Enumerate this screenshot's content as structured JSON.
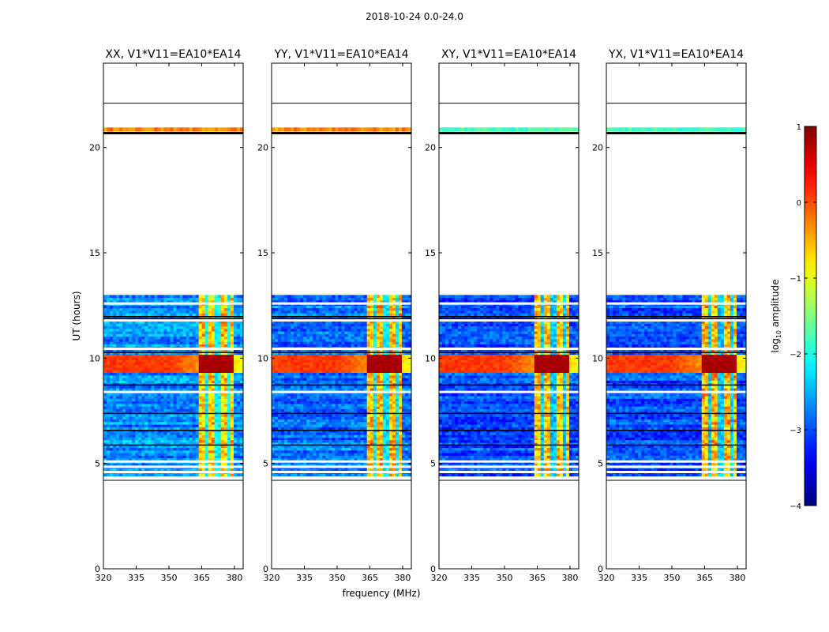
{
  "suptitle": "2018-10-24 0.0-24.0",
  "chart_data": {
    "type": "heatmap",
    "x_label": "frequency (MHz)",
    "y_label": "UT (hours)",
    "x_ticks": [
      320,
      335,
      350,
      365,
      380
    ],
    "x_tick_labels": [
      "320",
      "335",
      "350",
      "365",
      "380"
    ],
    "y_ticks": [
      0,
      5,
      10,
      15,
      20
    ],
    "y_tick_labels": [
      "0",
      "5",
      "10",
      "15",
      "20"
    ],
    "xlim": [
      320,
      384
    ],
    "ylim": [
      0,
      24
    ],
    "colorbar": {
      "label": "log10 amplitude",
      "label_prefix": "log",
      "label_sub": "10",
      "label_suffix": " amplitude",
      "range": [
        -4,
        1
      ],
      "ticks": [
        1,
        0,
        -1,
        -2,
        -3,
        -4
      ],
      "tick_labels": [
        "1",
        "0",
        "−1",
        "−2",
        "−3",
        "−4"
      ],
      "colormap": "jet"
    },
    "features": {
      "data_hours": [
        4.4,
        13.0
      ],
      "bright_band_mhz": [
        364,
        380
      ],
      "bright_band_gaps_mhz": [
        367.5,
        372.5,
        377.5
      ],
      "strong_rfi_hours": [
        9.3,
        10.2
      ],
      "extra_rows_hours": [
        20.75,
        20.95
      ],
      "horizontal_lines_hours": [
        4.2,
        22.1,
        20.7
      ]
    },
    "panels": [
      {
        "name": "XX",
        "title": "XX, V1*V11=EA10*EA14",
        "band_start_mhz": 361,
        "hot_band_start_mhz": 364,
        "background_level": -2.7,
        "band_level": -0.7,
        "top_row_level": -0.3
      },
      {
        "name": "YY",
        "title": "YY, V1*V11=EA10*EA14",
        "band_start_mhz": 361,
        "hot_band_start_mhz": 364,
        "background_level": -2.8,
        "band_level": -0.5,
        "top_row_level": -0.3
      },
      {
        "name": "XY",
        "title": "XY, V1*V11=EA10*EA14",
        "band_start_mhz": 361,
        "hot_band_start_mhz": 364,
        "background_level": -3.0,
        "band_level": -0.6,
        "top_row_level": -1.8
      },
      {
        "name": "YX",
        "title": "YX, V1*V11=EA10*EA14",
        "band_start_mhz": 361,
        "hot_band_start_mhz": 364,
        "background_level": -3.0,
        "band_level": -0.6,
        "top_row_level": -1.8
      }
    ]
  }
}
